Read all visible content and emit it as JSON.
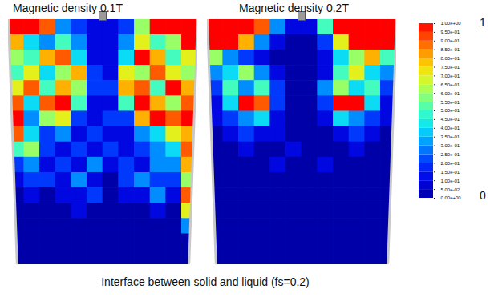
{
  "chart_data": [
    {
      "type": "heatmap",
      "title": "Magnetic density 0.1T",
      "tick_labels": false,
      "cells": [
        [
          1,
          1,
          0.9,
          0.3,
          0.2,
          0.1,
          0.1,
          0.2,
          0.6,
          1,
          1,
          1
        ],
        [
          0.8,
          0.4,
          0.3,
          0.5,
          0.3,
          0.1,
          0.1,
          0.3,
          0.7,
          0.5,
          0.6,
          1
        ],
        [
          0.6,
          0.5,
          0.8,
          0.9,
          0.4,
          0.1,
          0.1,
          0.4,
          1,
          0.8,
          0.5,
          0.7
        ],
        [
          0.5,
          0.7,
          0.4,
          0.6,
          0.8,
          0.2,
          0.1,
          0.7,
          0.6,
          0.9,
          0.7,
          0.6
        ],
        [
          0.7,
          0.9,
          0.5,
          0.8,
          0.6,
          0.2,
          0.2,
          0.8,
          0.9,
          0.5,
          1,
          0.8
        ],
        [
          0.9,
          0.4,
          0.9,
          1,
          0.5,
          0.1,
          0.1,
          0.5,
          1,
          0.8,
          0.6,
          0.9
        ],
        [
          1,
          0.3,
          0.6,
          0.7,
          0.2,
          0.1,
          0.2,
          0.2,
          0.8,
          1,
          0.9,
          1
        ],
        [
          0.9,
          0.4,
          0.2,
          0.3,
          0.1,
          0.2,
          0.1,
          0.1,
          0.3,
          0.4,
          0.7,
          0.8
        ],
        [
          0.5,
          0.6,
          0.2,
          0.1,
          0.2,
          0.1,
          0.2,
          0.1,
          0.2,
          0.3,
          0.4,
          0.9
        ],
        [
          0.2,
          0.3,
          0.1,
          0.2,
          0.1,
          0.3,
          0.1,
          0.2,
          0.1,
          0.3,
          0.3,
          0.8
        ],
        [
          0.1,
          0.2,
          0.2,
          0.1,
          0.3,
          0.1,
          0,
          0.2,
          0.3,
          0.2,
          0.2,
          0.6
        ],
        [
          0,
          0.1,
          0,
          0.1,
          0.1,
          0.2,
          0,
          0.1,
          0.1,
          0.3,
          0.1,
          0.9
        ],
        [
          0,
          0,
          0,
          0,
          0.1,
          0,
          0,
          0,
          0,
          0.1,
          0,
          0.7
        ],
        [
          0,
          0,
          0,
          0,
          0,
          0,
          0,
          0,
          0,
          0,
          0,
          0.3
        ],
        [
          0,
          0,
          0,
          0,
          0,
          0,
          0,
          0,
          0,
          0,
          0,
          0
        ],
        [
          0,
          0,
          0,
          0,
          0,
          0,
          0,
          0,
          0,
          0,
          0,
          0
        ]
      ]
    },
    {
      "type": "heatmap",
      "title": "Magnetic density 0.2T",
      "tick_labels": false,
      "cells": [
        [
          1,
          1,
          1,
          0.9,
          0.3,
          0.1,
          0.1,
          0.5,
          1,
          1,
          1,
          1
        ],
        [
          1,
          1,
          0.8,
          0.3,
          0.1,
          0,
          0,
          0.2,
          0.7,
          1,
          1,
          1
        ],
        [
          0.6,
          0.3,
          0.2,
          0.1,
          0,
          0,
          0,
          0.1,
          0.4,
          0.6,
          0.8,
          0.5
        ],
        [
          0.3,
          0.4,
          0.6,
          0.3,
          0.1,
          0,
          0,
          0.1,
          0.5,
          0.7,
          0.4,
          0.3
        ],
        [
          0.2,
          0.5,
          0.3,
          0.5,
          0.2,
          0,
          0,
          0.3,
          0.6,
          0.4,
          0.5,
          0.2
        ],
        [
          0.1,
          0.4,
          1,
          0.9,
          0.2,
          0,
          0,
          0.2,
          1,
          1,
          0.4,
          0.1
        ],
        [
          0.1,
          0.2,
          0.3,
          0.4,
          0.1,
          0,
          0,
          0.1,
          0.4,
          0.3,
          0.2,
          0.1
        ],
        [
          0,
          0.1,
          0.2,
          0.1,
          0.1,
          0,
          0,
          0,
          0.1,
          0.2,
          0.1,
          0
        ],
        [
          0,
          0,
          0.1,
          0,
          0,
          0.1,
          0,
          0,
          0,
          0.1,
          0,
          0
        ],
        [
          0,
          0,
          0,
          0,
          0.1,
          0,
          0,
          0.1,
          0,
          0,
          0,
          0
        ],
        [
          0,
          0,
          0,
          0,
          0,
          0,
          0,
          0,
          0,
          0,
          0,
          0
        ],
        [
          0,
          0,
          0,
          0,
          0,
          0,
          0,
          0,
          0,
          0,
          0,
          0
        ],
        [
          0,
          0,
          0,
          0,
          0,
          0,
          0,
          0,
          0,
          0,
          0,
          0
        ],
        [
          0,
          0,
          0,
          0,
          0,
          0,
          0,
          0,
          0,
          0,
          0,
          0
        ],
        [
          0,
          0,
          0,
          0,
          0,
          0,
          0,
          0,
          0,
          0,
          0,
          0
        ],
        [
          0,
          0,
          0,
          0,
          0,
          0,
          0,
          0,
          0,
          0,
          0,
          0
        ]
      ]
    }
  ],
  "colorbar": {
    "range": [
      0,
      1
    ],
    "ticks": [
      {
        "value": 1,
        "label": "1.00e+00"
      },
      {
        "value": 0.95,
        "label": "9.50e-01"
      },
      {
        "value": 0.9,
        "label": "9.00e-01"
      },
      {
        "value": 0.85,
        "label": "8.50e-01"
      },
      {
        "value": 0.8,
        "label": "8.00e-01"
      },
      {
        "value": 0.75,
        "label": "7.50e-01"
      },
      {
        "value": 0.7,
        "label": "7.00e-01"
      },
      {
        "value": 0.65,
        "label": "6.50e-01"
      },
      {
        "value": 0.6,
        "label": "6.00e-01"
      },
      {
        "value": 0.55,
        "label": "5.50e-01"
      },
      {
        "value": 0.5,
        "label": "5.00e-01"
      },
      {
        "value": 0.45,
        "label": "4.50e-01"
      },
      {
        "value": 0.4,
        "label": "4.00e-01"
      },
      {
        "value": 0.35,
        "label": "3.50e-01"
      },
      {
        "value": 0.3,
        "label": "3.00e-01"
      },
      {
        "value": 0.25,
        "label": "2.50e-01"
      },
      {
        "value": 0.2,
        "label": "2.00e-01"
      },
      {
        "value": 0.15,
        "label": "1.50e-01"
      },
      {
        "value": 0.1,
        "label": "1.00e-01"
      },
      {
        "value": 0.05,
        "label": "5.00e-02"
      },
      {
        "value": 0,
        "label": "0.00e+00"
      }
    ],
    "end_labels": [
      "1",
      "0"
    ]
  },
  "caption": "Interface between solid and liquid (fs=0.2)"
}
